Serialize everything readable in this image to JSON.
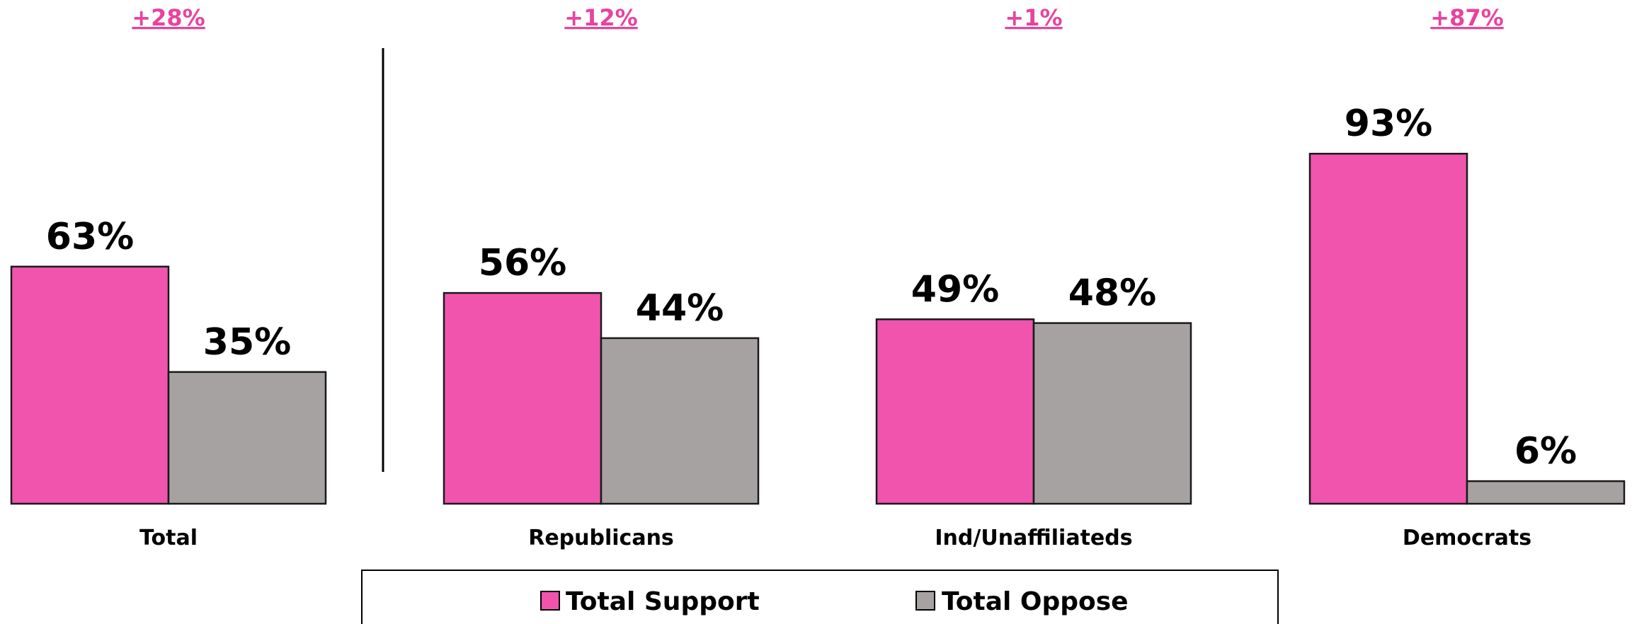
{
  "chart_data": {
    "type": "bar",
    "categories": [
      "Total",
      "Republicans",
      "Ind/Unaffiliateds",
      "Democrats"
    ],
    "series": [
      {
        "name": "Total Support",
        "values": [
          63,
          56,
          49,
          93
        ],
        "color": "#f054ad"
      },
      {
        "name": "Total Oppose",
        "values": [
          35,
          44,
          48,
          6
        ],
        "color": "#a7a2a2"
      }
    ],
    "value_labels": [
      [
        "63%",
        "56%",
        "49%",
        "93%"
      ],
      [
        "35%",
        "44%",
        "48%",
        "6%"
      ]
    ],
    "differences": [
      "+28%",
      "+12%",
      "+1%",
      "+87%"
    ],
    "difference_color": "#e8439e",
    "legend": {
      "placement": "bottom",
      "items": [
        "Total Support",
        "Total Oppose"
      ]
    },
    "ylim": [
      0,
      100
    ],
    "grid": false,
    "divider_after_category": "Total"
  }
}
